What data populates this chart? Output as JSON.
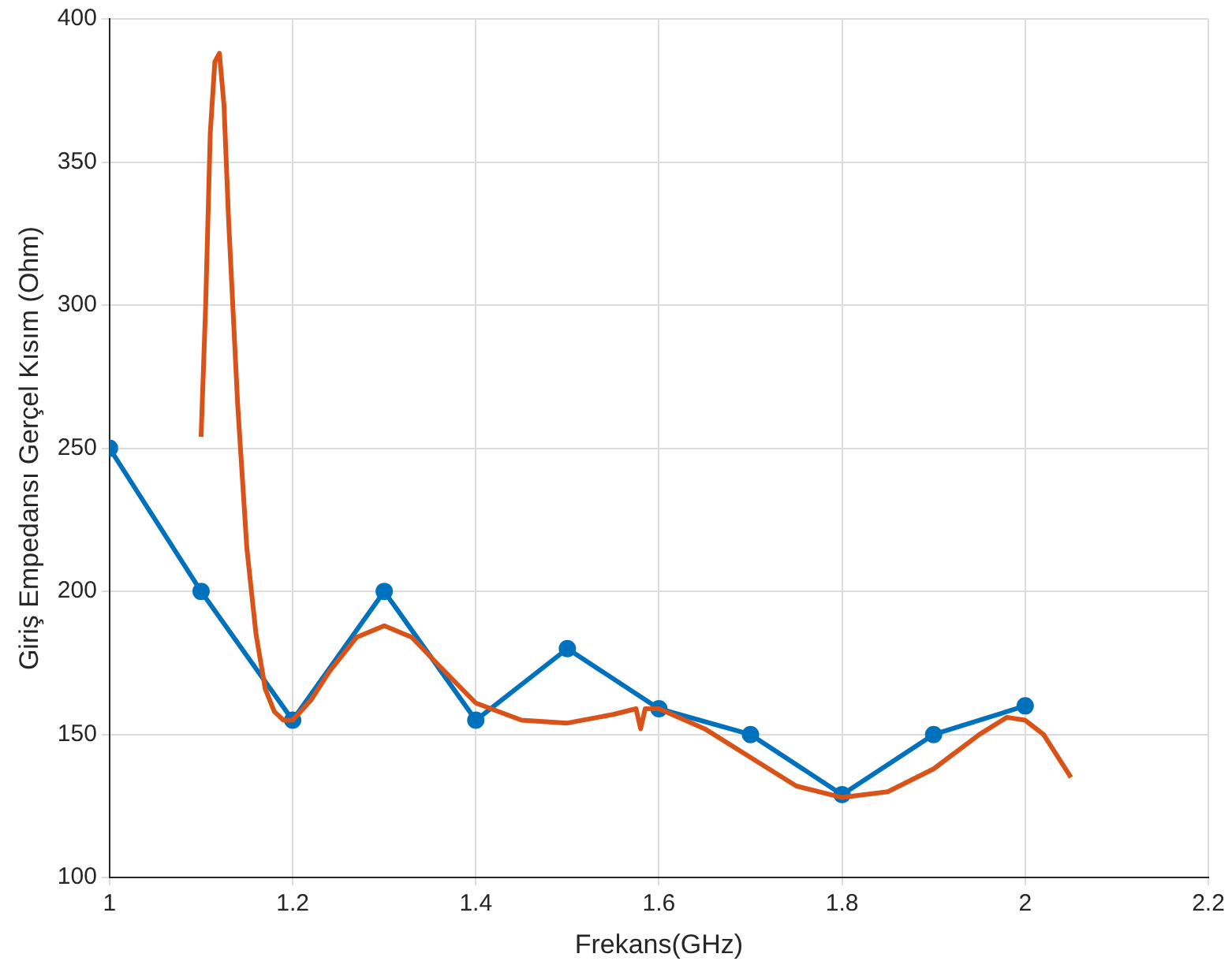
{
  "chart_data": {
    "type": "line",
    "xlabel": "Frekans(GHz)",
    "ylabel": "Giriş Empedansı Gerçel Kısım (Ohm)",
    "xlim": [
      1,
      2.2
    ],
    "xticks": [
      1,
      1.2,
      1.4,
      1.6,
      1.8,
      2,
      2.2
    ],
    "ylim": [
      100,
      400
    ],
    "yticks": [
      100,
      150,
      200,
      250,
      300,
      350,
      400
    ],
    "grid": true,
    "legend": false,
    "series": [
      {
        "color": "#0072bd",
        "marker": "circle",
        "x": [
          1,
          1.1,
          1.2,
          1.3,
          1.4,
          1.5,
          1.6,
          1.7,
          1.8,
          1.9,
          2
        ],
        "values": [
          250,
          200,
          155,
          200,
          155,
          180,
          159,
          150,
          129,
          150,
          160
        ]
      },
      {
        "color": "#d95319",
        "marker": "none",
        "x": [
          1.1,
          1.105,
          1.11,
          1.115,
          1.12,
          1.125,
          1.13,
          1.14,
          1.15,
          1.16,
          1.17,
          1.18,
          1.19,
          1.2,
          1.22,
          1.24,
          1.27,
          1.3,
          1.33,
          1.36,
          1.4,
          1.45,
          1.5,
          1.55,
          1.575,
          1.58,
          1.585,
          1.6,
          1.65,
          1.7,
          1.75,
          1.8,
          1.85,
          1.9,
          1.95,
          1.98,
          2,
          2.02,
          2.05
        ],
        "values": [
          254,
          300,
          360,
          385,
          388,
          370,
          330,
          265,
          215,
          185,
          166,
          158,
          155,
          155,
          162,
          172,
          184,
          188,
          184,
          174,
          161,
          155,
          154,
          157,
          159,
          152,
          159,
          159,
          152,
          142,
          132,
          128,
          130,
          138,
          150,
          156,
          155,
          150,
          135
        ]
      }
    ]
  }
}
